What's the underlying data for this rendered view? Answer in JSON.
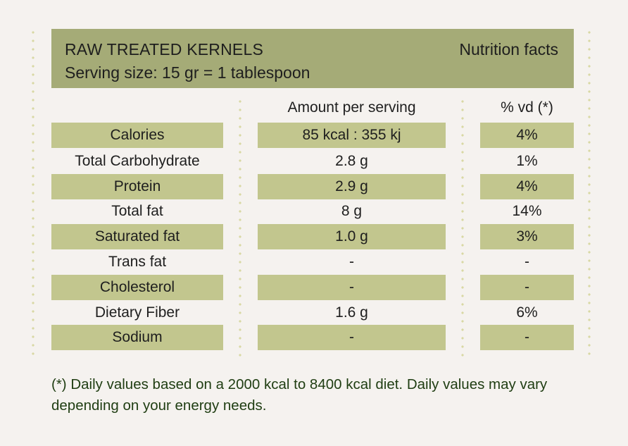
{
  "header": {
    "product_name": "RAW TREATED KERNELS",
    "label_title": "Nutrition facts",
    "serving_size": "Serving size: 15 gr = 1 tablespoon"
  },
  "columns": {
    "amount": "Amount per serving",
    "dv": "% vd (*)"
  },
  "rows": [
    {
      "name": "Calories",
      "amount": "85 kcal : 355 kj",
      "dv": "4%"
    },
    {
      "name": "Total Carbohydrate",
      "amount": "2.8 g",
      "dv": "1%"
    },
    {
      "name": "Protein",
      "amount": "2.9 g",
      "dv": "4%"
    },
    {
      "name": "Total fat",
      "amount": "8 g",
      "dv": "14%"
    },
    {
      "name": "Saturated fat",
      "amount": "1.0 g",
      "dv": "3%"
    },
    {
      "name": "Trans fat",
      "amount": "-",
      "dv": "-"
    },
    {
      "name": "Cholesterol",
      "amount": "-",
      "dv": "-"
    },
    {
      "name": "Dietary Fiber",
      "amount": "1.6 g",
      "dv": "6%"
    },
    {
      "name": "Sodium",
      "amount": "-",
      "dv": "-"
    }
  ],
  "footnote": "(*) Daily values based on a 2000 kcal to 8400 kcal diet. Daily values may vary depending on your energy needs.",
  "colors": {
    "header_bg": "#a5ab77",
    "row_shade": "#c2c68e",
    "footnote_text": "#1f3d12",
    "dots": "#d8d8a4"
  }
}
